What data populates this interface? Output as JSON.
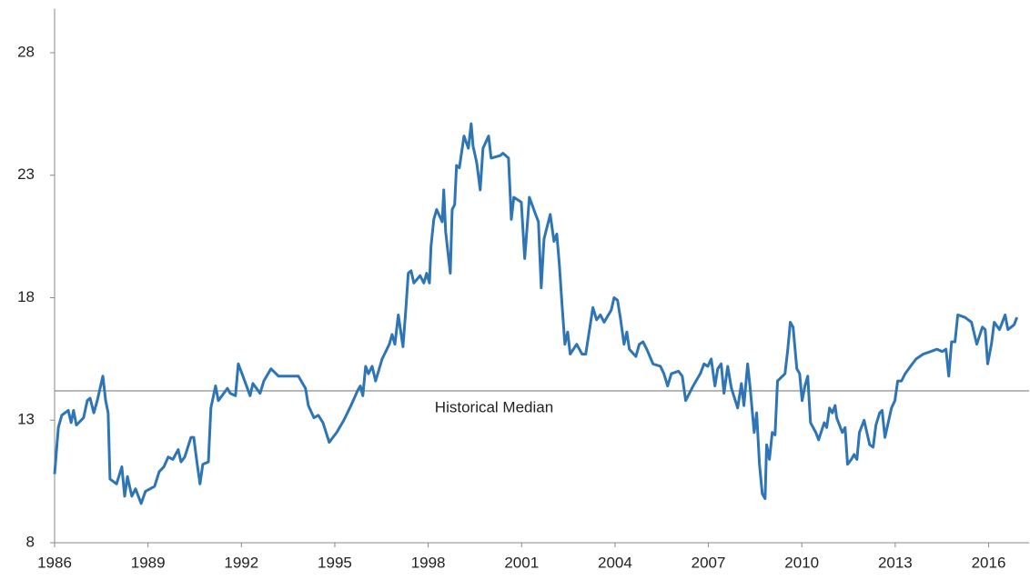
{
  "chart_data": {
    "type": "line",
    "x": [
      1986.0,
      1986.12,
      1986.23,
      1986.44,
      1986.53,
      1986.61,
      1986.7,
      1986.93,
      1987.05,
      1987.14,
      1987.26,
      1987.37,
      1987.55,
      1987.64,
      1987.72,
      1987.78,
      1987.99,
      1988.16,
      1988.25,
      1988.34,
      1988.48,
      1988.6,
      1988.78,
      1988.92,
      1989.21,
      1989.36,
      1989.51,
      1989.65,
      1989.8,
      1989.97,
      1990.06,
      1990.18,
      1990.38,
      1990.47,
      1990.56,
      1990.67,
      1990.76,
      1990.94,
      1991.02,
      1991.17,
      1991.26,
      1991.55,
      1991.64,
      1991.81,
      1991.9,
      1992.02,
      1992.28,
      1992.37,
      1992.6,
      1992.72,
      1992.95,
      1993.19,
      1993.54,
      1993.83,
      1994.06,
      1994.15,
      1994.33,
      1994.47,
      1994.62,
      1994.82,
      1995.06,
      1995.29,
      1995.52,
      1995.73,
      1995.82,
      1995.9,
      1995.99,
      1996.08,
      1996.2,
      1996.31,
      1996.52,
      1996.75,
      1996.84,
      1996.93,
      1997.04,
      1997.19,
      1997.28,
      1997.36,
      1997.45,
      1997.54,
      1997.74,
      1997.86,
      1997.95,
      1998.04,
      1998.09,
      1998.18,
      1998.27,
      1998.45,
      1998.5,
      1998.56,
      1998.71,
      1998.77,
      1998.85,
      1998.91,
      1999.0,
      1999.15,
      1999.29,
      1999.38,
      1999.44,
      1999.56,
      1999.67,
      1999.76,
      1999.94,
      2000.02,
      2000.31,
      2000.4,
      2000.58,
      2000.67,
      2000.75,
      2000.99,
      2001.1,
      2001.25,
      2001.45,
      2001.54,
      2001.63,
      2001.72,
      2001.92,
      2002.04,
      2002.13,
      2002.21,
      2002.3,
      2002.39,
      2002.48,
      2002.56,
      2002.77,
      2002.94,
      2003.06,
      2003.29,
      2003.41,
      2003.53,
      2003.65,
      2003.88,
      2003.97,
      2004.08,
      2004.17,
      2004.29,
      2004.38,
      2004.46,
      2004.67,
      2004.78,
      2004.9,
      2005.02,
      2005.22,
      2005.46,
      2005.57,
      2005.69,
      2005.81,
      2006.04,
      2006.16,
      2006.27,
      2006.51,
      2006.74,
      2006.86,
      2006.98,
      2007.09,
      2007.21,
      2007.3,
      2007.41,
      2007.5,
      2007.62,
      2007.74,
      2007.94,
      2008.06,
      2008.14,
      2008.26,
      2008.35,
      2008.47,
      2008.55,
      2008.64,
      2008.73,
      2008.82,
      2008.87,
      2008.96,
      2009.05,
      2009.14,
      2009.22,
      2009.46,
      2009.55,
      2009.63,
      2009.72,
      2009.84,
      2009.93,
      2010.01,
      2010.1,
      2010.19,
      2010.28,
      2010.45,
      2010.54,
      2010.72,
      2010.8,
      2010.89,
      2010.98,
      2011.07,
      2011.12,
      2011.3,
      2011.39,
      2011.47,
      2011.59,
      2011.68,
      2011.77,
      2011.85,
      2012.0,
      2012.18,
      2012.29,
      2012.38,
      2012.5,
      2012.58,
      2012.67,
      2012.88,
      2012.99,
      2013.08,
      2013.2,
      2013.32,
      2013.55,
      2013.67,
      2013.9,
      2014.13,
      2014.34,
      2014.51,
      2014.63,
      2014.72,
      2014.81,
      2014.92,
      2015.01,
      2015.24,
      2015.45,
      2015.62,
      2015.8,
      2015.89,
      2015.97,
      2016.09,
      2016.18,
      2016.35,
      2016.53,
      2016.62,
      2016.82,
      2016.91
    ],
    "values": [
      10.8,
      12.7,
      13.2,
      13.4,
      12.9,
      13.4,
      12.8,
      13.1,
      13.8,
      13.9,
      13.3,
      13.8,
      14.8,
      13.8,
      13.3,
      10.6,
      10.4,
      11.1,
      9.9,
      10.7,
      9.9,
      10.2,
      9.6,
      10.1,
      10.3,
      10.9,
      11.1,
      11.5,
      11.4,
      11.8,
      11.3,
      11.5,
      12.3,
      12.3,
      11.4,
      10.4,
      11.2,
      11.3,
      13.5,
      14.4,
      13.8,
      14.3,
      14.1,
      14.0,
      15.3,
      14.9,
      14.0,
      14.5,
      14.1,
      14.6,
      15.1,
      14.8,
      14.8,
      14.8,
      14.3,
      13.6,
      13.1,
      13.2,
      12.9,
      12.1,
      12.5,
      13.0,
      13.6,
      14.2,
      14.4,
      14.0,
      15.2,
      14.9,
      15.2,
      14.6,
      15.5,
      16.1,
      16.5,
      16.1,
      17.3,
      16.0,
      17.5,
      19.0,
      19.1,
      18.6,
      18.9,
      18.6,
      19.0,
      18.6,
      20.1,
      21.2,
      21.6,
      21.1,
      22.4,
      20.7,
      19.0,
      21.6,
      21.8,
      23.4,
      23.3,
      24.6,
      24.1,
      25.1,
      24.2,
      23.5,
      22.4,
      24.1,
      24.6,
      23.7,
      23.8,
      23.9,
      23.7,
      21.2,
      22.1,
      21.9,
      19.6,
      22.1,
      21.4,
      21.1,
      18.4,
      20.4,
      21.4,
      20.3,
      20.6,
      19.4,
      17.7,
      16.1,
      16.6,
      15.7,
      16.1,
      15.7,
      15.7,
      17.6,
      17.1,
      17.3,
      17.0,
      17.5,
      18.0,
      17.9,
      17.2,
      16.1,
      16.6,
      15.9,
      15.6,
      16.1,
      16.2,
      15.9,
      15.3,
      15.2,
      14.9,
      14.4,
      14.9,
      15.0,
      14.8,
      13.8,
      14.4,
      14.9,
      15.3,
      15.2,
      15.5,
      14.4,
      15.1,
      15.3,
      14.1,
      15.2,
      14.3,
      13.5,
      14.5,
      13.6,
      15.3,
      14.2,
      12.5,
      13.3,
      11.2,
      10.0,
      9.8,
      12.0,
      11.4,
      12.5,
      12.4,
      14.6,
      14.9,
      15.9,
      17.0,
      16.8,
      15.1,
      14.9,
      13.8,
      14.4,
      14.8,
      12.9,
      12.5,
      12.2,
      12.9,
      12.7,
      13.5,
      13.3,
      13.6,
      13.1,
      12.5,
      12.7,
      11.2,
      11.4,
      11.6,
      11.4,
      12.5,
      13.0,
      12.0,
      11.9,
      12.8,
      13.3,
      13.4,
      12.3,
      13.5,
      13.8,
      14.6,
      14.6,
      14.9,
      15.3,
      15.5,
      15.7,
      15.8,
      15.9,
      15.8,
      15.9,
      14.8,
      16.2,
      16.2,
      17.3,
      17.2,
      17.0,
      16.1,
      16.8,
      16.7,
      15.3,
      16.1,
      17.0,
      16.7,
      17.3,
      16.7,
      16.9,
      17.2
    ],
    "color": "#2e75b6",
    "xlim": [
      1986,
      2017.3
    ],
    "xticks": [
      1986,
      1989,
      1992,
      1995,
      1998,
      2001,
      2004,
      2007,
      2010,
      2013,
      2016
    ],
    "ylim": [
      8,
      29.8
    ],
    "yticks": [
      8,
      13,
      18,
      23,
      28
    ],
    "reference_line": {
      "value": 14.2,
      "label": "Historical Median",
      "color": "#808080"
    }
  }
}
